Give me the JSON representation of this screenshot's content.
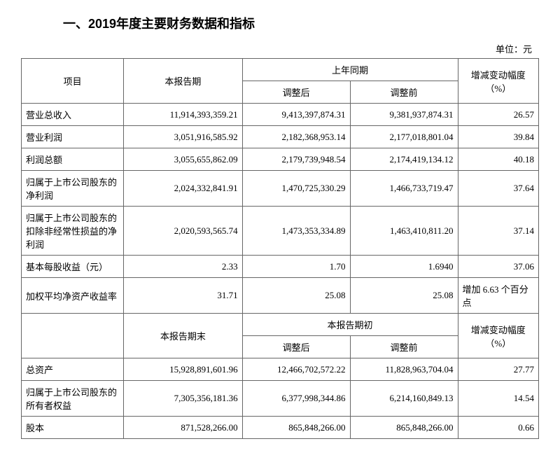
{
  "title": "一、2019年度主要财务数据和指标",
  "unit": "单位：元",
  "header1": {
    "item": "项目",
    "period": "本报告期",
    "prev_group": "上年同期",
    "adj": "调整后",
    "preadj": "调整前",
    "chg": "增减变动幅度（%）"
  },
  "rows1": [
    {
      "label": "营业总收入",
      "period": "11,914,393,359.21",
      "adj": "9,413,397,874.31",
      "preadj": "9,381,937,874.31",
      "chg": "26.57"
    },
    {
      "label": "营业利润",
      "period": "3,051,916,585.92",
      "adj": "2,182,368,953.14",
      "preadj": "2,177,018,801.04",
      "chg": "39.84"
    },
    {
      "label": "利润总额",
      "period": "3,055,655,862.09",
      "adj": "2,179,739,948.54",
      "preadj": "2,174,419,134.12",
      "chg": "40.18"
    },
    {
      "label": "归属于上市公司股东的净利润",
      "period": "2,024,332,841.91",
      "adj": "1,470,725,330.29",
      "preadj": "1,466,733,719.47",
      "chg": "37.64"
    },
    {
      "label": "归属于上市公司股东的扣除非经常性损益的净利润",
      "period": "2,020,593,565.74",
      "adj": "1,473,353,334.89",
      "preadj": "1,463,410,811.20",
      "chg": "37.14"
    },
    {
      "label": "基本每股收益（元）",
      "period": "2.33",
      "adj": "1.70",
      "preadj": "1.6940",
      "chg": "37.06"
    },
    {
      "label": "加权平均净资产收益率",
      "period": "31.71",
      "adj": "25.08",
      "preadj": "25.08",
      "chg": "增加 6.63 个百分点"
    }
  ],
  "header2": {
    "period": "本报告期末",
    "prev_group": "本报告期初",
    "adj": "调整后",
    "preadj": "调整前",
    "chg": "增减变动幅度（%）"
  },
  "rows2": [
    {
      "label": "总资产",
      "period": "15,928,891,601.96",
      "adj": "12,466,702,572.22",
      "preadj": "11,828,963,704.04",
      "chg": "27.77"
    },
    {
      "label": "归属于上市公司股东的所有者权益",
      "period": "7,305,356,181.36",
      "adj": "6,377,998,344.86",
      "preadj": "6,214,160,849.13",
      "chg": "14.54"
    },
    {
      "label": "股本",
      "period": "871,528,266.00",
      "adj": "865,848,266.00",
      "preadj": "865,848,266.00",
      "chg": "0.66"
    }
  ]
}
